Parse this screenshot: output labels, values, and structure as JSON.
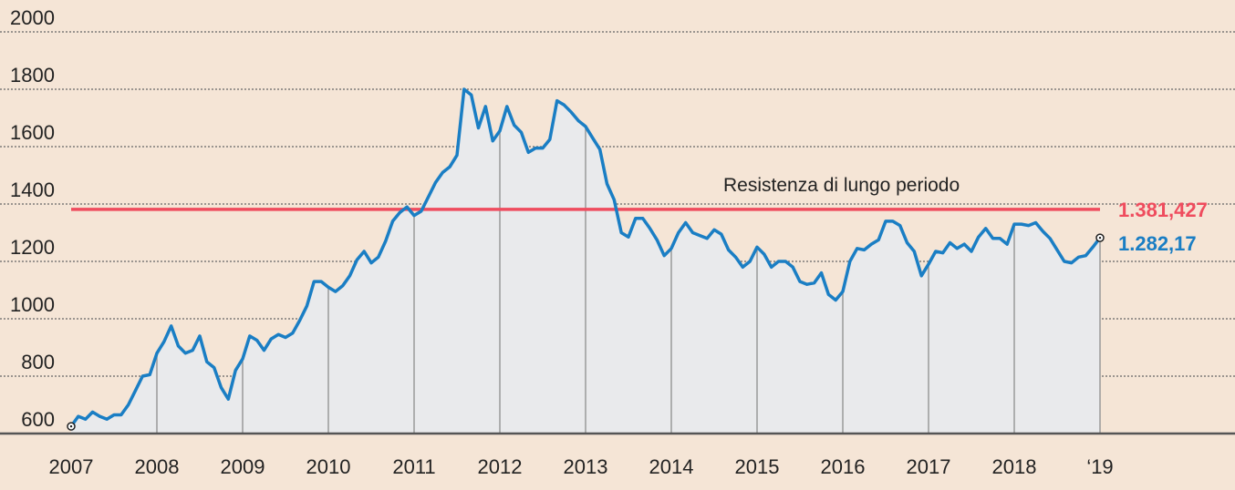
{
  "chart_data": {
    "type": "line",
    "title": "",
    "xlabel": "",
    "ylabel": "",
    "ylim": [
      600,
      2000
    ],
    "y_ticks": [
      "600",
      "800",
      "1000",
      "1200",
      "1400",
      "1600",
      "1800",
      "2000"
    ],
    "y_tick_values": [
      600,
      800,
      1000,
      1200,
      1400,
      1600,
      1800,
      2000
    ],
    "x_ticks": [
      "2007",
      "2008",
      "2009",
      "2010",
      "2011",
      "2012",
      "2013",
      "2014",
      "2015",
      "2016",
      "2017",
      "2018",
      "‘19"
    ],
    "x_tick_years": [
      2007,
      2008,
      2009,
      2010,
      2011,
      2012,
      2013,
      2014,
      2015,
      2016,
      2017,
      2018,
      2019
    ],
    "grid": "horizontal dotted",
    "colors": {
      "background": "#f5e5d6",
      "line": "#1a7ec4",
      "area": "#e9eaec",
      "resistance": "#ef4c5e"
    },
    "series": [
      {
        "dates": [
          "2007-01",
          "2007-02",
          "2007-03",
          "2007-04",
          "2007-05",
          "2007-06",
          "2007-07",
          "2007-08",
          "2007-09",
          "2007-10",
          "2007-11",
          "2007-12",
          "2008-01",
          "2008-02",
          "2008-03",
          "2008-04",
          "2008-05",
          "2008-06",
          "2008-07",
          "2008-08",
          "2008-09",
          "2008-10",
          "2008-11",
          "2008-12",
          "2009-01",
          "2009-02",
          "2009-03",
          "2009-04",
          "2009-05",
          "2009-06",
          "2009-07",
          "2009-08",
          "2009-09",
          "2009-10",
          "2009-11",
          "2009-12",
          "2010-01",
          "2010-02",
          "2010-03",
          "2010-04",
          "2010-05",
          "2010-06",
          "2010-07",
          "2010-08",
          "2010-09",
          "2010-10",
          "2010-11",
          "2010-12",
          "2011-01",
          "2011-02",
          "2011-03",
          "2011-04",
          "2011-05",
          "2011-06",
          "2011-07",
          "2011-08",
          "2011-09",
          "2011-10",
          "2011-11",
          "2011-12",
          "2012-01",
          "2012-02",
          "2012-03",
          "2012-04",
          "2012-05",
          "2012-06",
          "2012-07",
          "2012-08",
          "2012-09",
          "2012-10",
          "2012-11",
          "2012-12",
          "2013-01",
          "2013-02",
          "2013-03",
          "2013-04",
          "2013-05",
          "2013-06",
          "2013-07",
          "2013-08",
          "2013-09",
          "2013-10",
          "2013-11",
          "2013-12",
          "2014-01",
          "2014-02",
          "2014-03",
          "2014-04",
          "2014-05",
          "2014-06",
          "2014-07",
          "2014-08",
          "2014-09",
          "2014-10",
          "2014-11",
          "2014-12",
          "2015-01",
          "2015-02",
          "2015-03",
          "2015-04",
          "2015-05",
          "2015-06",
          "2015-07",
          "2015-08",
          "2015-09",
          "2015-10",
          "2015-11",
          "2015-12",
          "2016-01",
          "2016-02",
          "2016-03",
          "2016-04",
          "2016-05",
          "2016-06",
          "2016-07",
          "2016-08",
          "2016-09",
          "2016-10",
          "2016-11",
          "2016-12",
          "2017-01",
          "2017-02",
          "2017-03",
          "2017-04",
          "2017-05",
          "2017-06",
          "2017-07",
          "2017-08",
          "2017-09",
          "2017-10",
          "2017-11",
          "2017-12",
          "2018-01",
          "2018-02",
          "2018-03",
          "2018-04",
          "2018-05",
          "2018-06",
          "2018-07",
          "2018-08",
          "2018-09",
          "2018-10",
          "2018-11",
          "2018-12",
          "2019-01"
        ],
        "values": [
          625,
          660,
          650,
          675,
          660,
          650,
          665,
          665,
          700,
          750,
          800,
          805,
          880,
          920,
          975,
          905,
          880,
          890,
          940,
          850,
          830,
          760,
          720,
          820,
          860,
          940,
          925,
          890,
          930,
          945,
          935,
          950,
          995,
          1045,
          1130,
          1130,
          1110,
          1095,
          1115,
          1150,
          1205,
          1235,
          1195,
          1215,
          1270,
          1340,
          1370,
          1390,
          1360,
          1375,
          1425,
          1475,
          1510,
          1530,
          1570,
          1800,
          1780,
          1665,
          1740,
          1620,
          1655,
          1740,
          1675,
          1650,
          1580,
          1595,
          1595,
          1625,
          1760,
          1745,
          1720,
          1690,
          1670,
          1630,
          1590,
          1470,
          1415,
          1300,
          1285,
          1350,
          1350,
          1315,
          1275,
          1220,
          1245,
          1300,
          1335,
          1300,
          1290,
          1280,
          1310,
          1295,
          1240,
          1215,
          1180,
          1200,
          1250,
          1225,
          1180,
          1200,
          1200,
          1180,
          1130,
          1120,
          1125,
          1160,
          1085,
          1065,
          1095,
          1200,
          1245,
          1240,
          1260,
          1275,
          1340,
          1340,
          1325,
          1265,
          1235,
          1150,
          1190,
          1235,
          1230,
          1265,
          1245,
          1260,
          1235,
          1285,
          1315,
          1280,
          1280,
          1260,
          1330,
          1330,
          1325,
          1335,
          1305,
          1280,
          1240,
          1200,
          1195,
          1215,
          1220,
          1250,
          1282.17
        ]
      }
    ],
    "resistance": {
      "value": 1381.427,
      "label": "1.381,427"
    },
    "last_value_label": "1.282,17",
    "annotations": [
      "Resistenza di lungo periodo"
    ]
  }
}
